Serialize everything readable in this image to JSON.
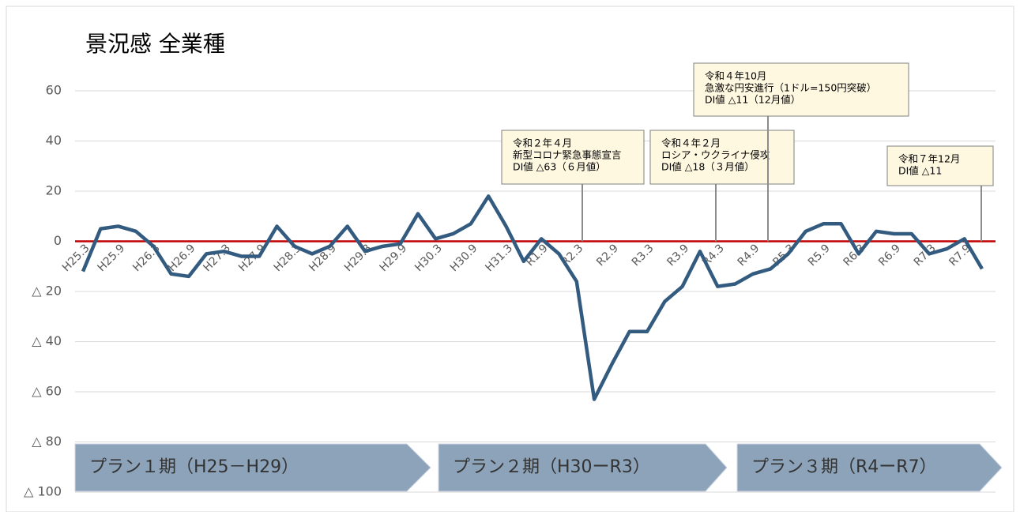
{
  "chart_data": {
    "type": "line",
    "title": "景況感 全業種",
    "categories": [
      "H25.3",
      null,
      "H25.9",
      null,
      "H26.3",
      null,
      "H26.9",
      null,
      "H27.3",
      null,
      "H27.9",
      null,
      "H28.3",
      null,
      "H28.9",
      null,
      "H29.3",
      null,
      "H29.9",
      null,
      "H30.3",
      null,
      "H30.9",
      null,
      "H31.3",
      null,
      "R1.9",
      null,
      "R2.3",
      null,
      "R2.9",
      null,
      "R3.3",
      null,
      "R3.9",
      null,
      "R4.3",
      null,
      "R4.9",
      null,
      "R5.3",
      null,
      "R5.9",
      null,
      "R6.3",
      null,
      "R6.9",
      null,
      "R7.3",
      null,
      "R7.9",
      null
    ],
    "series": [
      {
        "name": "全業種",
        "color": "#335b80",
        "values": [
          -12,
          5,
          6,
          4,
          -2,
          -13,
          -14,
          -5,
          -4,
          -6,
          -6,
          6,
          -2,
          -5,
          -2,
          6,
          -4,
          -2,
          -1,
          11,
          1,
          3,
          7,
          18,
          6,
          -8,
          1,
          -5,
          -16,
          -63,
          -49,
          -36,
          -36,
          -24,
          -18,
          -4,
          -18,
          -17,
          -13,
          -11,
          -5,
          4,
          7,
          7,
          -5,
          4,
          3,
          3,
          -5,
          -3,
          1,
          -11
        ]
      }
    ],
    "ylim": [
      -100,
      60
    ],
    "yticks": [
      {
        "value": -100,
        "label": "△ 100"
      },
      {
        "value": -80,
        "label": "△ 80"
      },
      {
        "value": -60,
        "label": "△ 60"
      },
      {
        "value": -40,
        "label": "△ 40"
      },
      {
        "value": -20,
        "label": "△ 20"
      },
      0,
      20,
      40,
      60
    ],
    "grid": true,
    "annotations": [
      {
        "lines": [
          "令和２年４月",
          "新型コロナ緊急事態宣言",
          "DI値 △63（６月値）"
        ]
      },
      {
        "lines": [
          "令和４年２月",
          "ロシア・ウクライナ侵攻",
          "DI値 △18（３月値）"
        ]
      },
      {
        "lines": [
          "令和４年10月",
          "急激な円安進行（1ドル=150円突破）",
          "DI値 △11（12月値）"
        ]
      },
      {
        "lines": [
          "令和７年12月",
          "DI値 △11"
        ]
      }
    ],
    "phases": [
      "プラン１期（H25－H29）",
      "プラン２期（H30ーR3）",
      "プラン３期（R4ーR7）"
    ]
  }
}
